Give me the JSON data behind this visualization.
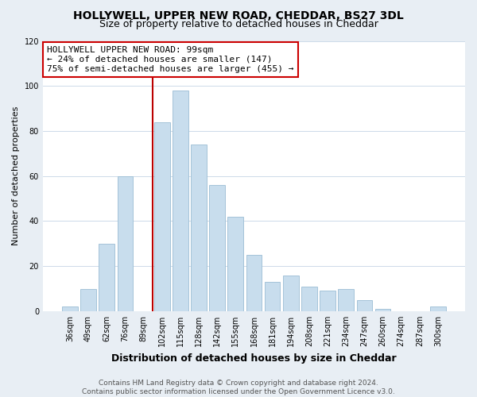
{
  "title": "HOLLYWELL, UPPER NEW ROAD, CHEDDAR, BS27 3DL",
  "subtitle": "Size of property relative to detached houses in Cheddar",
  "xlabel": "Distribution of detached houses by size in Cheddar",
  "ylabel": "Number of detached properties",
  "bar_labels": [
    "36sqm",
    "49sqm",
    "62sqm",
    "76sqm",
    "89sqm",
    "102sqm",
    "115sqm",
    "128sqm",
    "142sqm",
    "155sqm",
    "168sqm",
    "181sqm",
    "194sqm",
    "208sqm",
    "221sqm",
    "234sqm",
    "247sqm",
    "260sqm",
    "274sqm",
    "287sqm",
    "300sqm"
  ],
  "bar_values": [
    2,
    10,
    30,
    60,
    0,
    84,
    98,
    74,
    56,
    42,
    25,
    13,
    16,
    11,
    9,
    10,
    5,
    1,
    0,
    0,
    2
  ],
  "bar_color": "#c8dded",
  "bar_edge_color": "#9bbdd4",
  "vline_x_idx": 5,
  "vline_color": "#bb0000",
  "annotation_line1": "HOLLYWELL UPPER NEW ROAD: 99sqm",
  "annotation_line2": "← 24% of detached houses are smaller (147)",
  "annotation_line3": "75% of semi-detached houses are larger (455) →",
  "annotation_box_color": "#ffffff",
  "annotation_box_edge": "#cc0000",
  "ylim": [
    0,
    120
  ],
  "yticks": [
    0,
    20,
    40,
    60,
    80,
    100,
    120
  ],
  "footer_line1": "Contains HM Land Registry data © Crown copyright and database right 2024.",
  "footer_line2": "Contains public sector information licensed under the Open Government Licence v3.0.",
  "bg_color": "#e8eef4",
  "plot_bg_color": "#ffffff",
  "title_fontsize": 10,
  "subtitle_fontsize": 9,
  "xlabel_fontsize": 9,
  "ylabel_fontsize": 8,
  "tick_fontsize": 7,
  "annotation_fontsize": 8,
  "footer_fontsize": 6.5
}
